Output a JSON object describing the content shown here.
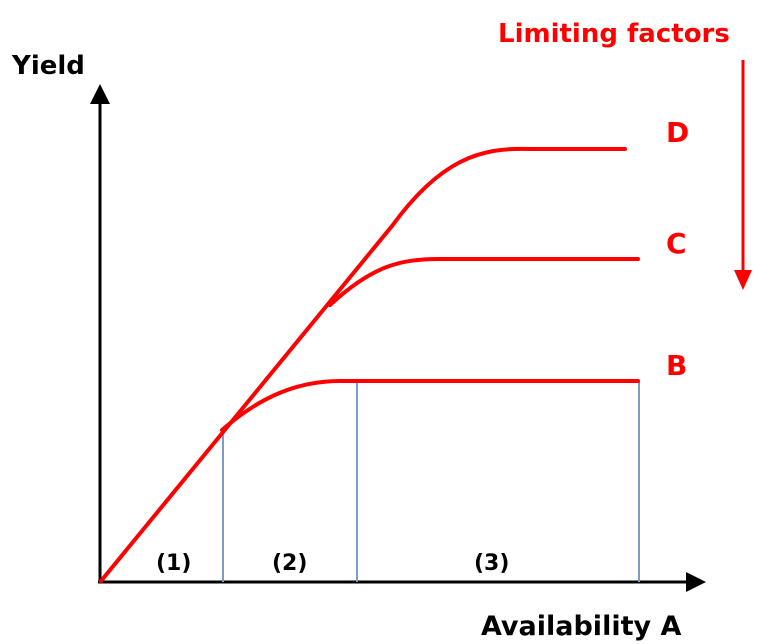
{
  "axes": {
    "y_label": "Yield",
    "x_label": "Availability A"
  },
  "limiting_factors": {
    "label": "Limiting factors"
  },
  "curves": [
    {
      "label": "B"
    },
    {
      "label": "C"
    },
    {
      "label": "D"
    }
  ],
  "regions": [
    {
      "label": "(1)"
    },
    {
      "label": "(2)"
    },
    {
      "label": "(3)"
    }
  ],
  "colors": {
    "curve": "#ff0000",
    "axis": "#000000",
    "divider": "#7f9cc9",
    "label_red": "#ff0000"
  }
}
